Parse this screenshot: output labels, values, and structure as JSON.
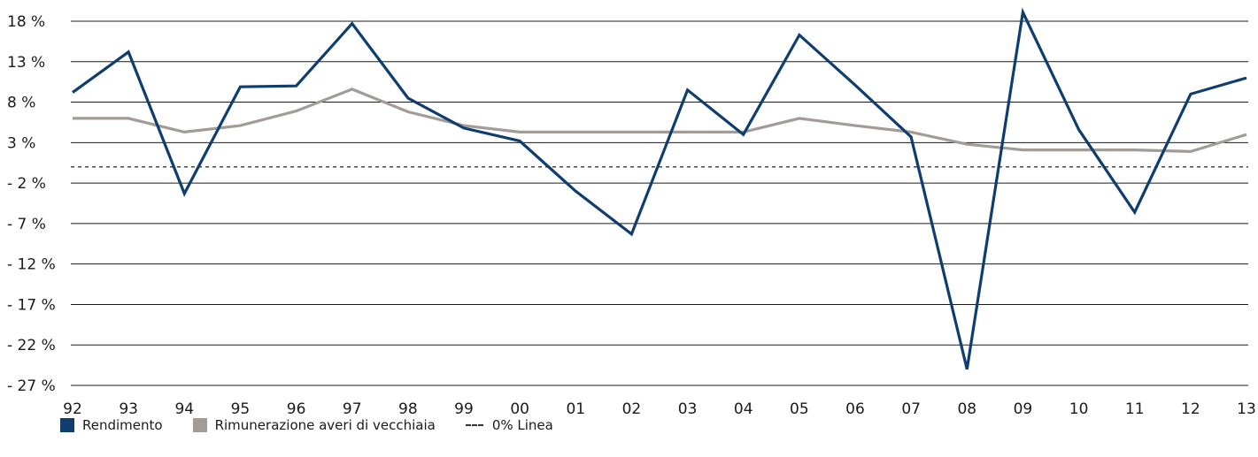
{
  "chart_data": {
    "type": "line",
    "categories": [
      "92",
      "93",
      "94",
      "95",
      "96",
      "97",
      "98",
      "99",
      "00",
      "01",
      "02",
      "03",
      "04",
      "05",
      "06",
      "07",
      "08",
      "09",
      "10",
      "11",
      "12",
      "13"
    ],
    "series": [
      {
        "name": "Rendimento",
        "color": "#0f3d6e",
        "values": [
          9.2,
          14.2,
          -3.3,
          9.9,
          10.0,
          17.7,
          8.5,
          4.8,
          3.2,
          -3.0,
          -8.3,
          9.5,
          4.0,
          16.3,
          10.1,
          3.7,
          -25.0,
          19.1,
          4.6,
          -5.6,
          9.0,
          11.0
        ]
      },
      {
        "name": "Rimunerazione averi di vecchiaia",
        "color": "#a39b96",
        "values": [
          6.0,
          6.0,
          4.3,
          5.1,
          6.9,
          9.6,
          6.8,
          5.1,
          4.3,
          4.3,
          4.3,
          4.3,
          4.3,
          6.0,
          5.1,
          4.3,
          2.8,
          2.1,
          2.1,
          2.1,
          1.9,
          4.0
        ]
      }
    ],
    "reference_line": {
      "label": "0% Linea",
      "value": 0
    },
    "ylim": [
      -27,
      18
    ],
    "yticks": [
      18,
      13,
      8,
      3,
      -2,
      -7,
      -12,
      -17,
      -22,
      -27
    ],
    "ytick_labels": [
      "18 %",
      "13 %",
      "8 %",
      "3 %",
      "- 2 %",
      "- 7 %",
      "- 12 %",
      "- 17 %",
      "- 22 %",
      "- 27 %"
    ],
    "grid": true,
    "legend_position": "bottom-left"
  },
  "legend": {
    "rendimento": "Rendimento",
    "rimunerazione": "Rimunerazione averi di vecchiaia",
    "linea": "0% Linea"
  }
}
